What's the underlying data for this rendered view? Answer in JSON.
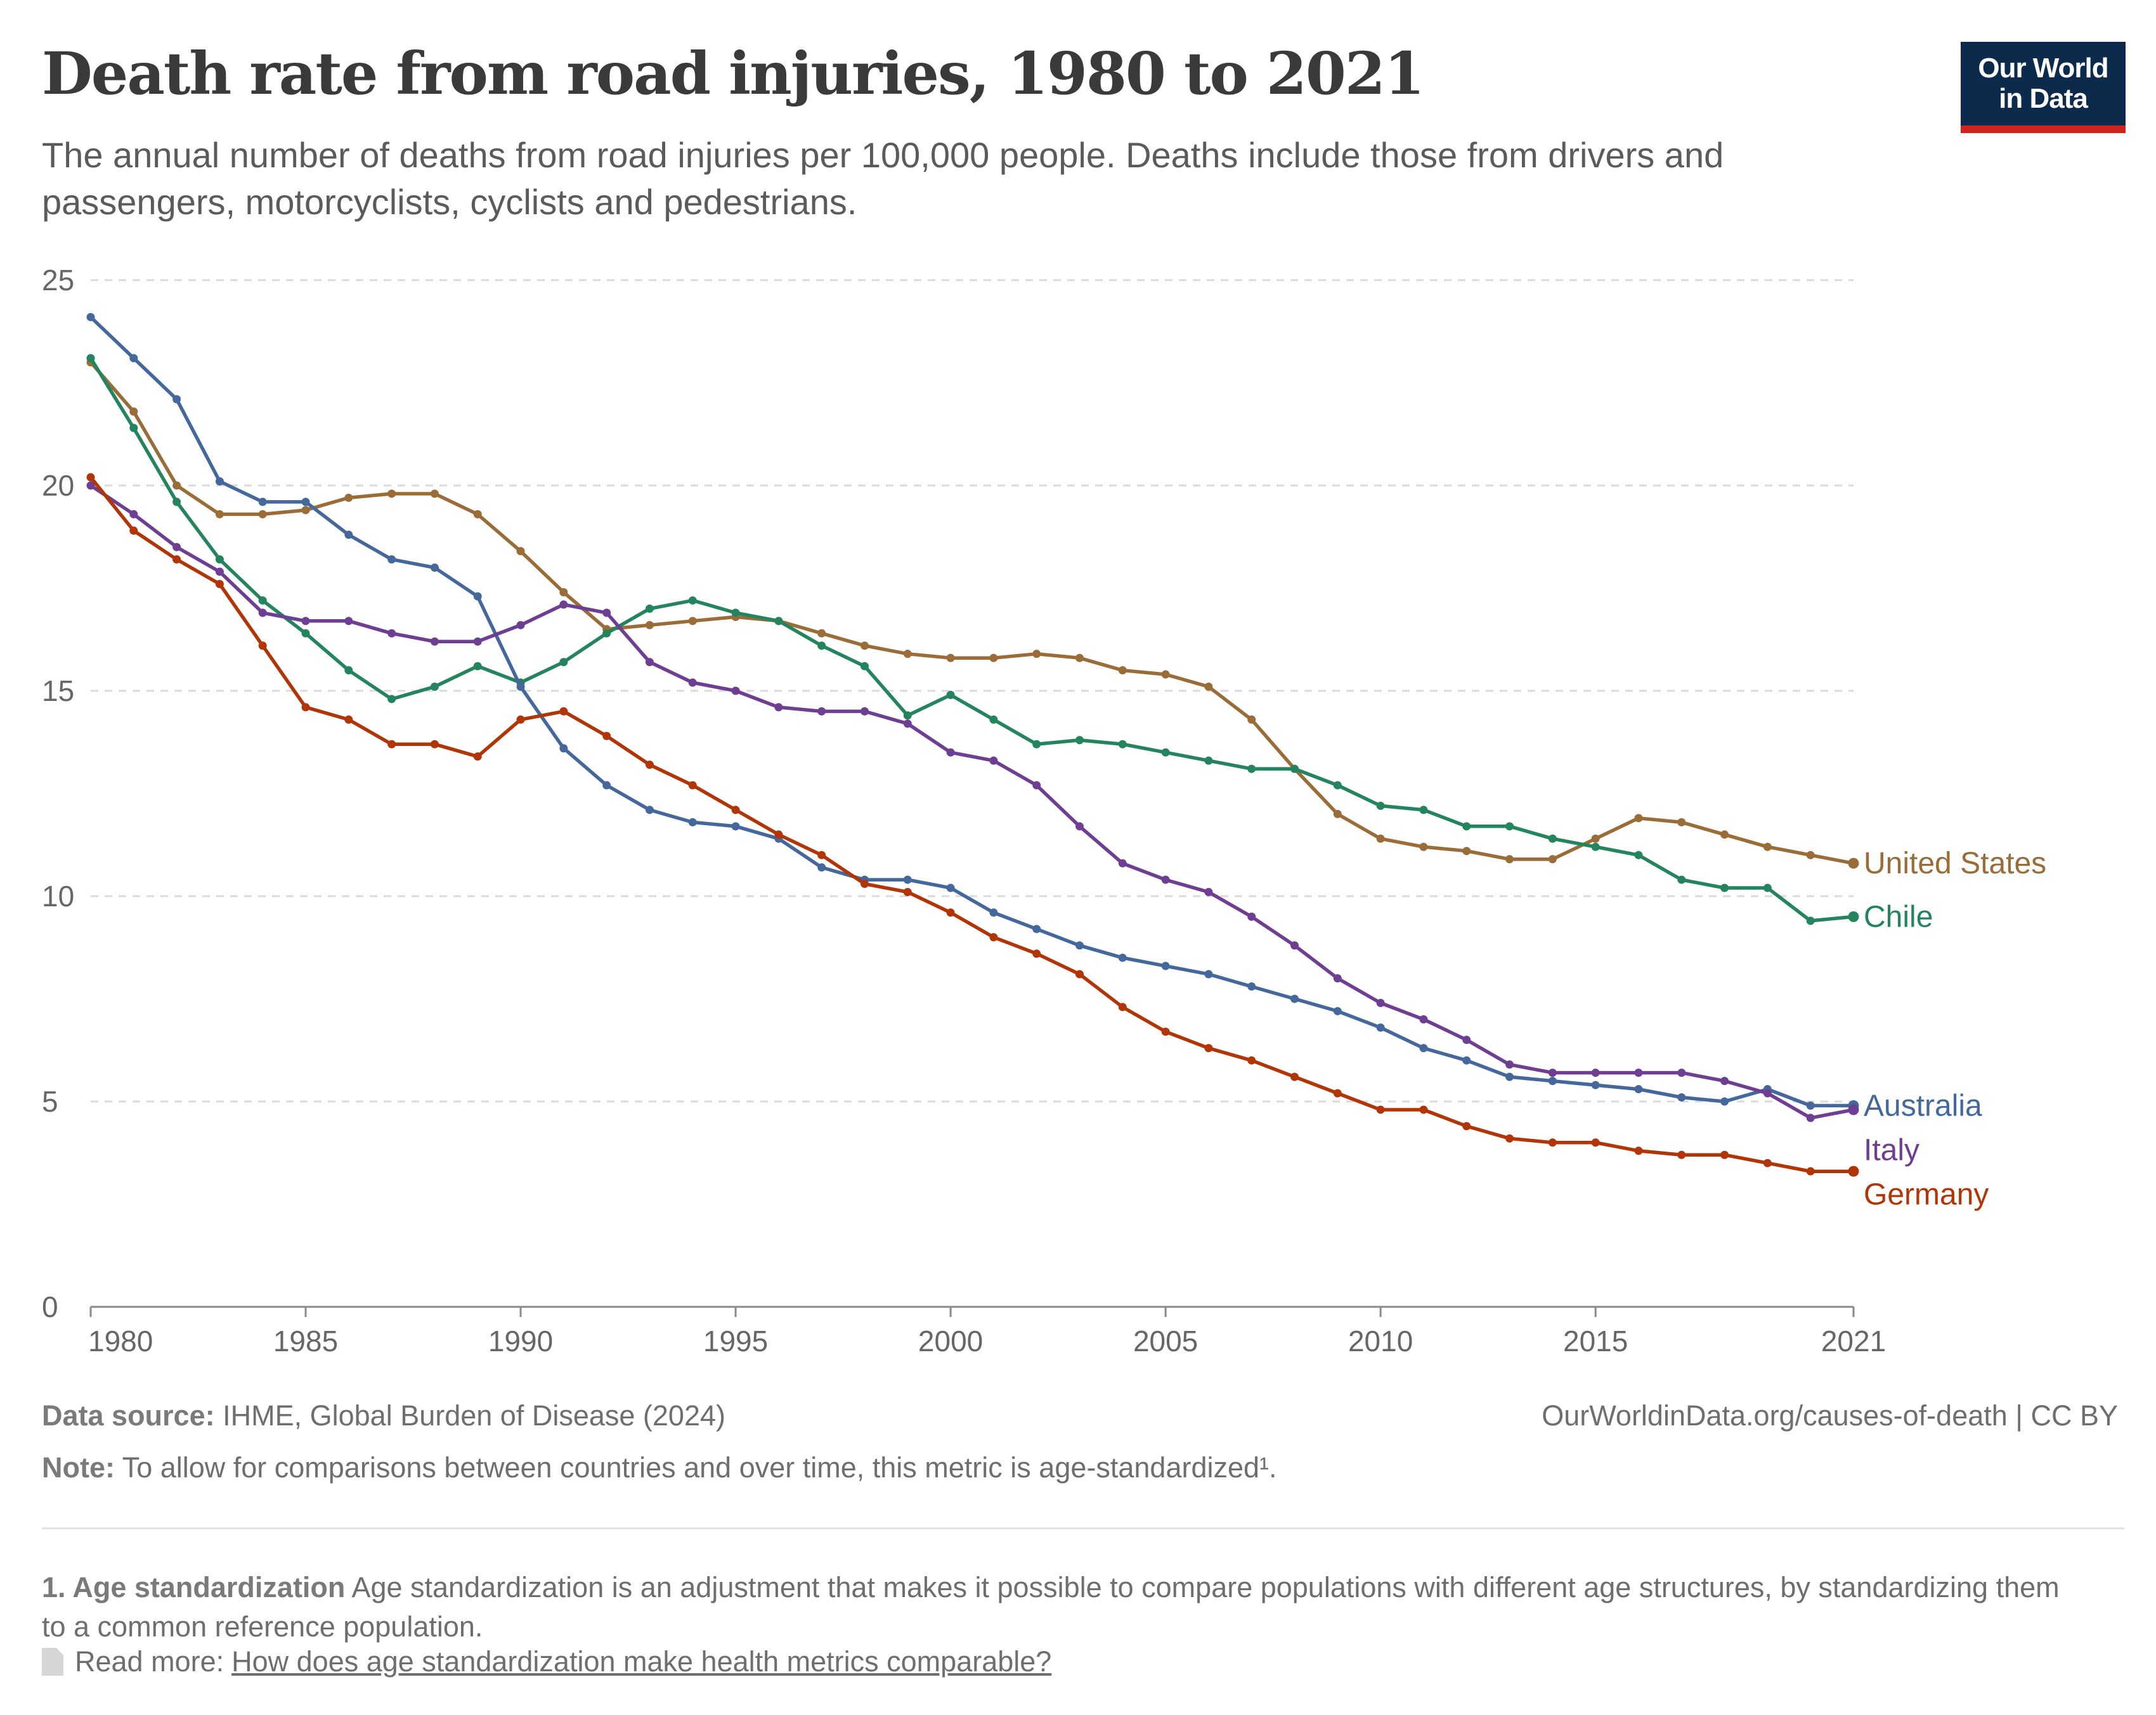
{
  "header": {
    "title": "Death rate from road injuries, 1980 to 2021",
    "subtitle": "The annual number of deaths from road injuries per 100,000 people. Deaths include those from drivers and passengers, motorcyclists, cyclists and pedestrians.",
    "logo_line1": "Our World",
    "logo_line2": "in Data"
  },
  "colors": {
    "United States": "#9a6d38",
    "Chile": "#23845e",
    "Australia": "#44689b",
    "Italy": "#6d3e91",
    "Germany": "#b13507",
    "brand_navy": "#0c2a4b",
    "brand_red": "#ce261e"
  },
  "chart_data": {
    "type": "line",
    "title": "Death rate from road injuries, 1980 to 2021",
    "ylim": [
      0,
      25
    ],
    "xlim": [
      1980,
      2021
    ],
    "yticks": [
      0,
      5,
      10,
      15,
      20,
      25
    ],
    "xticks": [
      1980,
      1985,
      1990,
      1995,
      2000,
      2005,
      2010,
      2015,
      2021
    ],
    "grid": true,
    "legend": "inline labels at right end of lines",
    "x": [
      1980,
      1981,
      1982,
      1983,
      1984,
      1985,
      1986,
      1987,
      1988,
      1989,
      1990,
      1991,
      1992,
      1993,
      1994,
      1995,
      1996,
      1997,
      1998,
      1999,
      2000,
      2001,
      2002,
      2003,
      2004,
      2005,
      2006,
      2007,
      2008,
      2009,
      2010,
      2011,
      2012,
      2013,
      2014,
      2015,
      2016,
      2017,
      2018,
      2019,
      2020,
      2021
    ],
    "series": [
      {
        "name": "United States",
        "values": [
          23.0,
          21.8,
          20.0,
          19.3,
          19.3,
          19.4,
          19.7,
          19.8,
          19.8,
          19.3,
          18.4,
          17.4,
          16.5,
          16.6,
          16.7,
          16.8,
          16.7,
          16.4,
          16.1,
          15.9,
          15.8,
          15.8,
          15.9,
          15.8,
          15.5,
          15.4,
          15.1,
          14.3,
          13.1,
          12.0,
          11.4,
          11.2,
          11.1,
          10.9,
          10.9,
          11.4,
          11.9,
          11.8,
          11.5,
          11.2,
          11.0,
          10.8
        ]
      },
      {
        "name": "Chile",
        "values": [
          23.1,
          21.4,
          19.6,
          18.2,
          17.2,
          16.4,
          15.5,
          14.8,
          15.1,
          15.6,
          15.2,
          15.7,
          16.4,
          17.0,
          17.2,
          16.9,
          16.7,
          16.1,
          15.6,
          14.4,
          14.9,
          14.3,
          13.7,
          13.8,
          13.7,
          13.5,
          13.3,
          13.1,
          13.1,
          12.7,
          12.2,
          12.1,
          11.7,
          11.7,
          11.4,
          11.2,
          11.0,
          10.4,
          10.2,
          10.2,
          9.4,
          9.5
        ]
      },
      {
        "name": "Australia",
        "values": [
          24.1,
          23.1,
          22.1,
          20.1,
          19.6,
          19.6,
          18.8,
          18.2,
          18.0,
          17.3,
          15.1,
          13.6,
          12.7,
          12.1,
          11.8,
          11.7,
          11.4,
          10.7,
          10.4,
          10.4,
          10.2,
          9.6,
          9.2,
          8.8,
          8.5,
          8.3,
          8.1,
          7.8,
          7.5,
          7.2,
          6.8,
          6.3,
          6.0,
          5.6,
          5.5,
          5.4,
          5.3,
          5.1,
          5.0,
          5.3,
          4.9,
          4.9
        ]
      },
      {
        "name": "Italy",
        "values": [
          20.0,
          19.3,
          18.5,
          17.9,
          16.9,
          16.7,
          16.7,
          16.4,
          16.2,
          16.2,
          16.6,
          17.1,
          16.9,
          15.7,
          15.2,
          15.0,
          14.6,
          14.5,
          14.5,
          14.2,
          13.5,
          13.3,
          12.7,
          11.7,
          10.8,
          10.4,
          10.1,
          9.5,
          8.8,
          8.0,
          7.4,
          7.0,
          6.5,
          5.9,
          5.7,
          5.7,
          5.7,
          5.7,
          5.5,
          5.2,
          4.6,
          4.8
        ]
      },
      {
        "name": "Germany",
        "values": [
          20.2,
          18.9,
          18.2,
          17.6,
          16.1,
          14.6,
          14.3,
          13.7,
          13.7,
          13.4,
          14.3,
          14.5,
          13.9,
          13.2,
          12.7,
          12.1,
          11.5,
          11.0,
          10.3,
          10.1,
          9.6,
          9.0,
          8.6,
          8.1,
          7.3,
          6.7,
          6.3,
          6.0,
          5.6,
          5.2,
          4.8,
          4.8,
          4.4,
          4.1,
          4.0,
          4.0,
          3.8,
          3.7,
          3.7,
          3.5,
          3.3,
          3.3
        ]
      }
    ]
  },
  "footer": {
    "source_label": "Data source:",
    "source_text": "IHME, Global Burden of Disease (2024)",
    "url_text": "OurWorldinData.org/causes-of-death | CC BY",
    "note_label": "Note:",
    "note_text": "To allow for comparisons between countries and over time, this metric is age-standardized¹.",
    "footnote_label": "1. Age standardization",
    "footnote_text": "Age standardization is an adjustment that makes it possible to compare populations with different age structures, by standardizing them to a common reference population.",
    "readmore_label": "Read more:",
    "readmore_link": "How does age standardization make health metrics comparable?"
  }
}
